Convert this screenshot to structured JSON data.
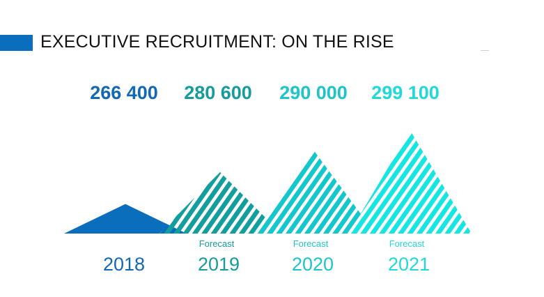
{
  "page": {
    "title": "EXECUTIVE RECRUITMENT: ON THE RISE"
  },
  "colors": {
    "accent": "#0a6ebd",
    "background": "#ffffff"
  },
  "chart_data": {
    "type": "area",
    "title": "EXECUTIVE RECRUITMENT: ON THE RISE",
    "categories": [
      "2018",
      "2019",
      "2020",
      "2021"
    ],
    "values": [
      266400,
      280600,
      290000,
      299100
    ],
    "value_labels": [
      "266 400",
      "280 600",
      "290 000",
      "299 100"
    ],
    "annotations": [
      "",
      "Forecast",
      "Forecast",
      "Forecast"
    ],
    "fill_style": [
      "solid",
      "striped",
      "striped",
      "striped"
    ],
    "colors": [
      "#0a6ebd",
      "#139e9e",
      "#14c7cc",
      "#16e6e2"
    ],
    "label_colors": [
      "#1368b3",
      "#179b9b",
      "#1ec4c8",
      "#22d8d8"
    ],
    "ylim": [
      230000,
      310000
    ],
    "grid": false,
    "legend": "none"
  }
}
